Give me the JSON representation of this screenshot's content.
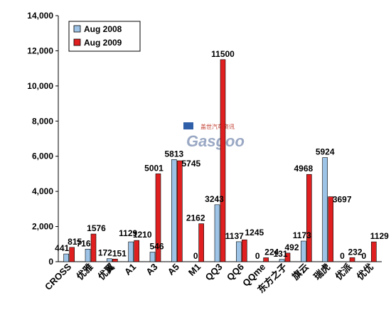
{
  "chart_data": {
    "type": "bar",
    "categories": [
      "CROSS",
      "优雅",
      "优翼",
      "A1",
      "A3",
      "A5",
      "M1",
      "QQ3",
      "QQ6",
      "QQme",
      "东方之子",
      "旗云",
      "瑞虎",
      "优派",
      "优优"
    ],
    "series": [
      {
        "name": "Aug 2008",
        "color": "#9dc3e6",
        "values": [
          441,
          716,
          172,
          1129,
          546,
          5813,
          0,
          3243,
          1137,
          0,
          131,
          1173,
          5924,
          0,
          0
        ]
      },
      {
        "name": "Aug 2009",
        "color": "#e02020",
        "values": [
          815,
          1576,
          151,
          1210,
          5001,
          5745,
          2162,
          11500,
          1245,
          224,
          492,
          4968,
          3697,
          232,
          1129
        ]
      }
    ],
    "ylim": [
      0,
      14000
    ],
    "yticks": [
      "0",
      "2,000",
      "4,000",
      "6,000",
      "8,000",
      "10,000",
      "12,000",
      "14,000"
    ],
    "legend_position": "top-left",
    "grid": false
  },
  "watermark": {
    "text": "Gasgoo",
    "subtitle": "盖世汽车资讯"
  }
}
